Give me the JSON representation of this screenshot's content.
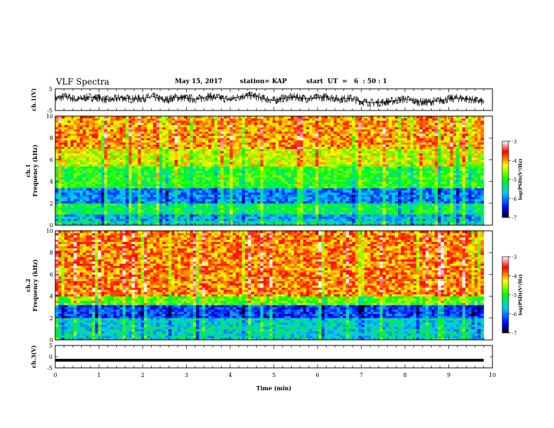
{
  "header": {
    "title": "VLF Spectra",
    "date": "May 15, 2017",
    "station": "station= KAP",
    "start": "start  UT  =   6  : 50 : 1"
  },
  "chart_data": [
    {
      "type": "line",
      "name": "ch1-waveform",
      "ylabel": "ch.1(V)",
      "ylim": [
        -5,
        5
      ],
      "xlim": [
        0,
        10
      ],
      "y_ticks": [
        "5",
        "-5"
      ],
      "x": [
        0,
        0.25,
        0.5,
        0.75,
        1.0,
        1.25,
        1.5,
        1.75,
        2.0,
        2.25,
        2.5,
        2.75,
        3.0,
        3.25,
        3.5,
        3.75,
        4.0,
        4.25,
        4.5,
        4.75,
        5.0,
        5.25,
        5.5,
        5.75,
        6.0,
        6.25,
        6.5,
        6.75,
        7.0,
        7.25,
        7.5,
        7.75,
        8.0,
        8.25,
        8.5,
        8.75,
        9.0,
        9.25,
        9.5,
        9.8
      ],
      "y": [
        0.5,
        1.5,
        0,
        1.2,
        0.8,
        -0.2,
        1.0,
        0.3,
        0.6,
        1.4,
        -0.3,
        1.1,
        0.7,
        0.2,
        1.5,
        0.9,
        0.1,
        1.6,
        2.0,
        0.6,
        -0.4,
        0.8,
        1.2,
        0.5,
        0.9,
        1.3,
        0.2,
        0.7,
        -0.8,
        -1.5,
        -1.2,
        -0.5,
        0.4,
        -0.9,
        -1.2,
        -0.6,
        0.3,
        0.8,
        0.1,
        -1.0
      ]
    },
    {
      "type": "heatmap",
      "name": "ch1-spectrogram",
      "ylabel": "ch.1\nFrequency (kHz)",
      "xlim": [
        0,
        10
      ],
      "ylim": [
        0,
        10
      ],
      "y_ticks": [
        "0",
        "2",
        "4",
        "6",
        "8",
        "10"
      ],
      "colorbar": {
        "label": "log(PSD)(V²/Hz)",
        "range": [
          -7,
          -3
        ],
        "ticks": [
          "-3",
          "-4",
          "-5",
          "-6",
          "-7"
        ]
      },
      "bands_khz": [
        [
          0,
          0.5,
          -5.5
        ],
        [
          0.5,
          1.0,
          -5.8
        ],
        [
          1.0,
          2.0,
          -5.2
        ],
        [
          2.0,
          3.5,
          -6.0
        ],
        [
          3.5,
          5.5,
          -5.0
        ],
        [
          5.5,
          7.0,
          -4.4
        ],
        [
          7.0,
          10.0,
          -4.0
        ]
      ]
    },
    {
      "type": "heatmap",
      "name": "ch2-spectrogram",
      "ylabel": "ch.2\nFrequency (kHz)",
      "xlim": [
        0,
        10
      ],
      "ylim": [
        0,
        10
      ],
      "y_ticks": [
        "0",
        "2",
        "4",
        "6",
        "8",
        "10"
      ],
      "colorbar": {
        "label": "log(PSD)(V²/Hz)",
        "range": [
          -7,
          -3
        ],
        "ticks": [
          "-3",
          "-4",
          "-5",
          "-6",
          "-7"
        ]
      },
      "bands_khz": [
        [
          0,
          1.0,
          -5.6
        ],
        [
          1.0,
          2.0,
          -5.6
        ],
        [
          2.0,
          3.2,
          -6.3
        ],
        [
          3.2,
          4.0,
          -4.8
        ],
        [
          4.0,
          10.0,
          -3.9
        ]
      ]
    },
    {
      "type": "line",
      "name": "ch3-waveform",
      "ylabel": "ch.3(V)",
      "xlabel": "Time (min)",
      "ylim": [
        -5,
        5
      ],
      "xlim": [
        0,
        10
      ],
      "y_ticks": [
        "5",
        "0",
        "-5"
      ],
      "x_ticks": [
        "0",
        "1",
        "2",
        "3",
        "4",
        "5",
        "6",
        "7",
        "8",
        "9",
        "10"
      ],
      "x": [
        0,
        9.8
      ],
      "y": [
        -1.6,
        -1.6
      ]
    }
  ],
  "colors": {
    "ink": "#000000",
    "colormap": [
      "#000000",
      "#0000ff",
      "#00c8ff",
      "#00ff00",
      "#ffff00",
      "#ff0000",
      "#ffffff"
    ]
  }
}
